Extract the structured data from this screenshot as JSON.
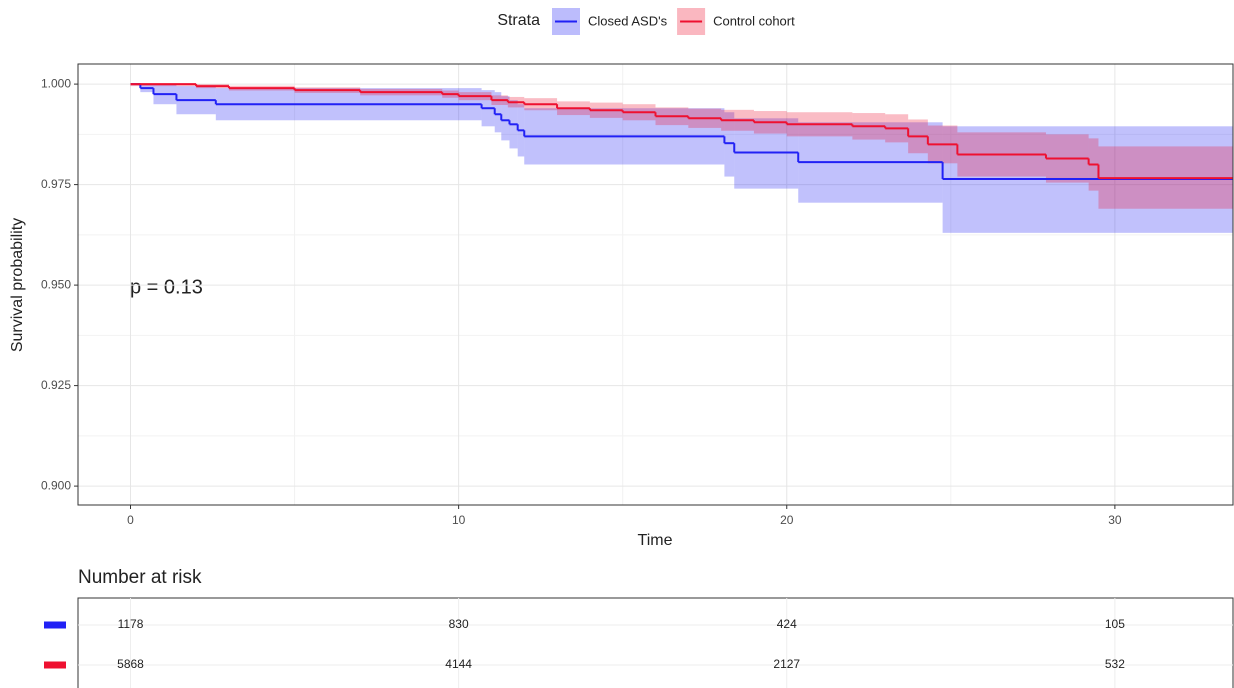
{
  "chart_data": {
    "type": "survival",
    "legend_title": "Strata",
    "x_label": "Time",
    "y_label": "Survival probability",
    "annotation": "p = 0.13",
    "xlim": [
      -1.6,
      33.6
    ],
    "ylim": [
      0.8953,
      1.005
    ],
    "xticks": [
      0,
      10,
      20,
      30
    ],
    "yticks": [
      {
        "value": 0.9,
        "label": "0.900"
      },
      {
        "value": 0.925,
        "label": "0.925"
      },
      {
        "value": 0.95,
        "label": "0.950"
      },
      {
        "value": 0.975,
        "label": "0.975"
      },
      {
        "value": 1.0,
        "label": "1.000"
      }
    ],
    "grid": true,
    "series": [
      {
        "name": "Closed ASD's",
        "color": "#2121f5",
        "x": [
          0,
          0.3,
          0.7,
          1.4,
          2.6,
          10.7,
          11.1,
          11.3,
          11.55,
          11.8,
          12.0,
          18.1,
          18.4,
          20.35,
          24.75
        ],
        "values": [
          1.0,
          0.999,
          0.9975,
          0.996,
          0.995,
          0.994,
          0.9925,
          0.991,
          0.99,
          0.9885,
          0.987,
          0.9853,
          0.983,
          0.9806,
          0.9764
        ],
        "lower": [
          1.0,
          0.998,
          0.995,
          0.9925,
          0.991,
          0.9895,
          0.988,
          0.986,
          0.984,
          0.982,
          0.98,
          0.977,
          0.974,
          0.9705,
          0.963
        ],
        "upper": [
          1.0,
          1.0,
          1.0,
          0.9995,
          0.999,
          0.9985,
          0.998,
          0.997,
          0.996,
          0.995,
          0.994,
          0.993,
          0.9915,
          0.9905,
          0.9895
        ]
      },
      {
        "name": "Control cohort",
        "color": "#ee1030",
        "x": [
          0,
          2,
          3,
          5,
          7,
          9.5,
          10,
          11,
          11.5,
          12,
          13,
          14,
          15,
          16,
          17,
          18,
          19,
          20,
          22,
          23,
          23.7,
          24.3,
          25.2,
          27.9,
          29.2,
          29.5
        ],
        "values": [
          1.0,
          0.9995,
          0.999,
          0.9985,
          0.998,
          0.9975,
          0.997,
          0.996,
          0.9955,
          0.995,
          0.994,
          0.9935,
          0.993,
          0.992,
          0.9915,
          0.991,
          0.9905,
          0.99,
          0.9895,
          0.989,
          0.987,
          0.985,
          0.9825,
          0.9815,
          0.98,
          0.9766
        ],
        "lower": [
          0.9995,
          0.999,
          0.9984,
          0.9978,
          0.9972,
          0.9966,
          0.996,
          0.9948,
          0.9942,
          0.9935,
          0.9923,
          0.9916,
          0.991,
          0.9898,
          0.9891,
          0.9884,
          0.9877,
          0.987,
          0.9862,
          0.9855,
          0.9828,
          0.9803,
          0.977,
          0.9755,
          0.9735,
          0.969
        ],
        "upper": [
          1.0,
          1.0,
          0.9996,
          0.9992,
          0.9988,
          0.9984,
          0.998,
          0.9972,
          0.9968,
          0.9965,
          0.9957,
          0.9954,
          0.995,
          0.9942,
          0.9939,
          0.9936,
          0.9933,
          0.993,
          0.9928,
          0.9925,
          0.9912,
          0.9897,
          0.988,
          0.9875,
          0.9865,
          0.9845
        ]
      }
    ],
    "risk_table": {
      "title": "Number at risk",
      "x": [
        0,
        10,
        20,
        30
      ],
      "rows": [
        [
          1178,
          830,
          424,
          105
        ],
        [
          5868,
          4144,
          2127,
          532
        ]
      ]
    }
  }
}
